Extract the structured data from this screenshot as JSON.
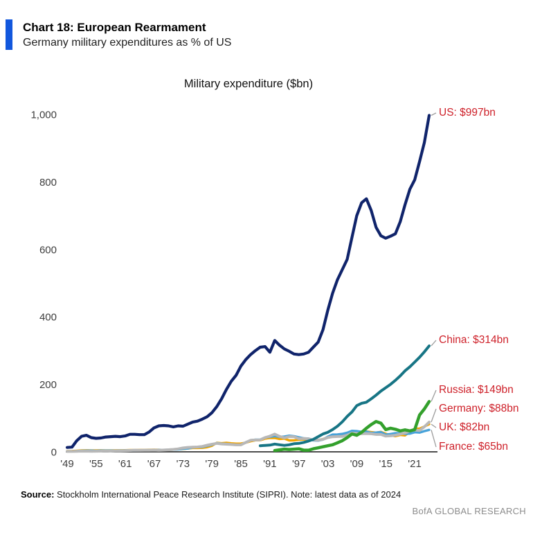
{
  "header": {
    "title": "Chart 18: European Rearmament",
    "subtitle": "Germany military expenditures as % of US"
  },
  "chart_data": {
    "type": "line",
    "title": "Military expenditure ($bn)",
    "xlabel": "",
    "ylabel": "",
    "grid": false,
    "legend": "end-of-line red annotations",
    "annotation_color": "#ce2029",
    "x_axis": {
      "tick_labels": [
        "'49",
        "'55",
        "'61",
        "'67",
        "'73",
        "'79",
        "'85",
        "'91",
        "'97",
        "'03",
        "'09",
        "'15",
        "'21"
      ],
      "tick_years": [
        1949,
        1955,
        1961,
        1967,
        1973,
        1979,
        1985,
        1991,
        1997,
        2003,
        2009,
        2015,
        2021
      ],
      "range": [
        1949,
        2024
      ]
    },
    "y_axis": {
      "tick_labels": [
        "0",
        "200",
        "400",
        "600",
        "800",
        "1,000"
      ],
      "tick_values": [
        0,
        200,
        400,
        600,
        800,
        1000
      ],
      "range": [
        0,
        1000
      ]
    },
    "series": [
      {
        "name": "US",
        "label": "US: $997bn",
        "color": "#10246b",
        "width": 4.2,
        "start_year": 1949,
        "values": [
          13,
          14,
          33,
          46,
          49,
          42,
          40,
          41,
          44,
          45,
          46,
          45,
          47,
          52,
          52,
          51,
          51,
          59,
          71,
          77,
          78,
          77,
          74,
          77,
          76,
          82,
          88,
          91,
          97,
          104,
          116,
          134,
          157,
          185,
          209,
          227,
          254,
          273,
          288,
          300,
          310,
          312,
          295,
          330,
          316,
          305,
          298,
          290,
          288,
          290,
          295,
          310,
          325,
          362,
          420,
          470,
          510,
          540,
          570,
          635,
          700,
          738,
          750,
          715,
          665,
          640,
          633,
          639,
          646,
          682,
          732,
          778,
          806,
          860,
          916,
          997
        ]
      },
      {
        "name": "China",
        "label": "China: $314bn",
        "color": "#177585",
        "width": 4,
        "start_year": 1989,
        "values": [
          18,
          19,
          20,
          23,
          21,
          19,
          21,
          24,
          25,
          28,
          32,
          37,
          45,
          53,
          58,
          66,
          76,
          89,
          105,
          118,
          137,
          144,
          147,
          157,
          168,
          180,
          190,
          200,
          212,
          225,
          240,
          252,
          266,
          280,
          296,
          314
        ]
      },
      {
        "name": "Russia",
        "label": "Russia: $149bn",
        "color": "#33a02c",
        "width": 4.5,
        "start_year": 1992,
        "values": [
          4,
          6,
          8,
          7,
          8,
          9,
          5,
          5,
          9,
          12,
          15,
          18,
          21,
          27,
          33,
          42,
          53,
          49,
          58,
          70,
          81,
          90,
          85,
          66,
          70,
          67,
          62,
          65,
          62,
          66,
          109,
          127,
          149
        ]
      },
      {
        "name": "Germany",
        "label": "Germany: $88bn",
        "color": "#b8b8b8",
        "width": 4,
        "start_year": 1949,
        "values": [
          1.2,
          1.3,
          1.6,
          2,
          1.8,
          1.7,
          1.8,
          2,
          2.6,
          2.1,
          2.8,
          2.9,
          3.2,
          4.2,
          4.9,
          4.7,
          4.9,
          5,
          5.3,
          4.8,
          5.3,
          6.1,
          7.2,
          8.8,
          11.4,
          13.1,
          13.8,
          14.3,
          16.1,
          19.5,
          22.6,
          25.1,
          23.4,
          22.5,
          21.8,
          20.7,
          20.8,
          27.8,
          34.3,
          35.2,
          35.5,
          42.3,
          46.5,
          52.5,
          45.7,
          41.5,
          45.2,
          44.5,
          39.1,
          39.5,
          38.7,
          35.1,
          34.7,
          36.9,
          42.4,
          44.7,
          45.3,
          45.6,
          49.3,
          55.4,
          54.7,
          53.5,
          54.3,
          53.6,
          51.5,
          51.6,
          46.7,
          47.5,
          49.1,
          52.8,
          55.6,
          61.5,
          64.4,
          63.2,
          74.1,
          88
        ]
      },
      {
        "name": "UK",
        "label": "UK: $82bn",
        "color": "#f2a500",
        "width": 3.4,
        "start_year": 1949,
        "values": [
          2.3,
          2.4,
          3.2,
          4.2,
          4.5,
          4.4,
          4.3,
          4.5,
          4.4,
          4.4,
          4.5,
          4.6,
          4.8,
          5.1,
          5.2,
          5.5,
          5.8,
          6,
          6.3,
          5.9,
          5.6,
          5.8,
          6.5,
          7.6,
          8.4,
          9.9,
          11.6,
          11.4,
          11.9,
          13.7,
          18,
          27,
          25.5,
          27,
          25.2,
          24.2,
          24.4,
          27.2,
          31.5,
          34.2,
          34.5,
          39.1,
          41.2,
          41,
          38.1,
          39.2,
          33.8,
          34.1,
          35.7,
          36.6,
          36.9,
          35,
          34.9,
          38,
          43,
          47.4,
          49.6,
          52,
          55.2,
          58.4,
          57.4,
          58.1,
          60.3,
          58.5,
          56.9,
          59.2,
          53.9,
          48.9,
          46.5,
          50.1,
          48.7,
          59.2,
          68.4,
          68.8,
          75,
          82
        ]
      },
      {
        "name": "France",
        "label": "France: $65bn",
        "color": "#47a2d9",
        "width": 3.4,
        "start_year": 1949,
        "values": [
          1.4,
          1.5,
          2.1,
          3,
          3.4,
          3.6,
          2.9,
          3.6,
          3.8,
          3.6,
          3.7,
          3.9,
          4.1,
          4.3,
          4.3,
          4.6,
          4.8,
          5,
          5.4,
          5.8,
          5.7,
          5.9,
          6.3,
          7.1,
          8.9,
          9.9,
          13,
          13.7,
          14.4,
          17.5,
          20.8,
          26,
          24.3,
          23.4,
          22,
          21.2,
          20.8,
          28.1,
          34.2,
          36.1,
          36.2,
          42.6,
          44.3,
          46.7,
          44.2,
          45.3,
          47.8,
          46.4,
          43.1,
          40.2,
          39.4,
          33.8,
          33.3,
          36.3,
          45,
          51.1,
          51.5,
          53.1,
          56.6,
          62.3,
          61.3,
          59.1,
          60,
          55.9,
          57,
          58.3,
          50.9,
          52.7,
          55.3,
          55.1,
          52.9,
          54.1,
          58.1,
          57.1,
          61.3,
          65
        ]
      }
    ]
  },
  "footer": {
    "source_label": "Source:",
    "source_text": " Stockholm International Peace Research Institute (SIPRI). Note: latest data as of 2024",
    "brand": "BofA GLOBAL RESEARCH"
  }
}
